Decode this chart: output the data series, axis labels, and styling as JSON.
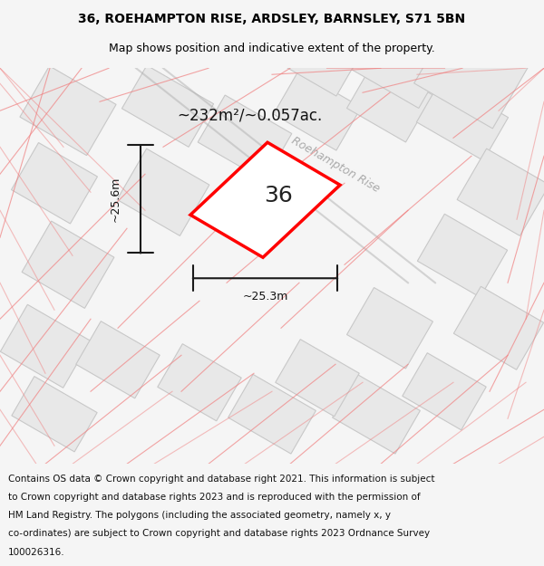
{
  "title_line1": "36, ROEHAMPTON RISE, ARDSLEY, BARNSLEY, S71 5BN",
  "title_line2": "Map shows position and indicative extent of the property.",
  "footer_text": "Contains OS data © Crown copyright and database right 2021. This information is subject to Crown copyright and database rights 2023 and is reproduced with the permission of HM Land Registry. The polygons (including the associated geometry, namely x, y co-ordinates) are subject to Crown copyright and database rights 2023 Ordnance Survey 100026316.",
  "area_label": "~232m²/~0.057ac.",
  "property_number": "36",
  "dim_width": "~25.3m",
  "dim_height": "~25.6m",
  "road_label": "Roehampton Rise",
  "bg_color": "#f5f5f5",
  "map_bg": "#ffffff",
  "plot_color_red": "#ff0000",
  "plot_color_fill": "#ffffff",
  "building_fill": "#e8e8e8",
  "road_line_color": "#c8c8c8",
  "pink_line_color": "#f08080",
  "dim_line_color": "#1a1a1a",
  "title_fontsize": 10,
  "footer_fontsize": 7.5
}
